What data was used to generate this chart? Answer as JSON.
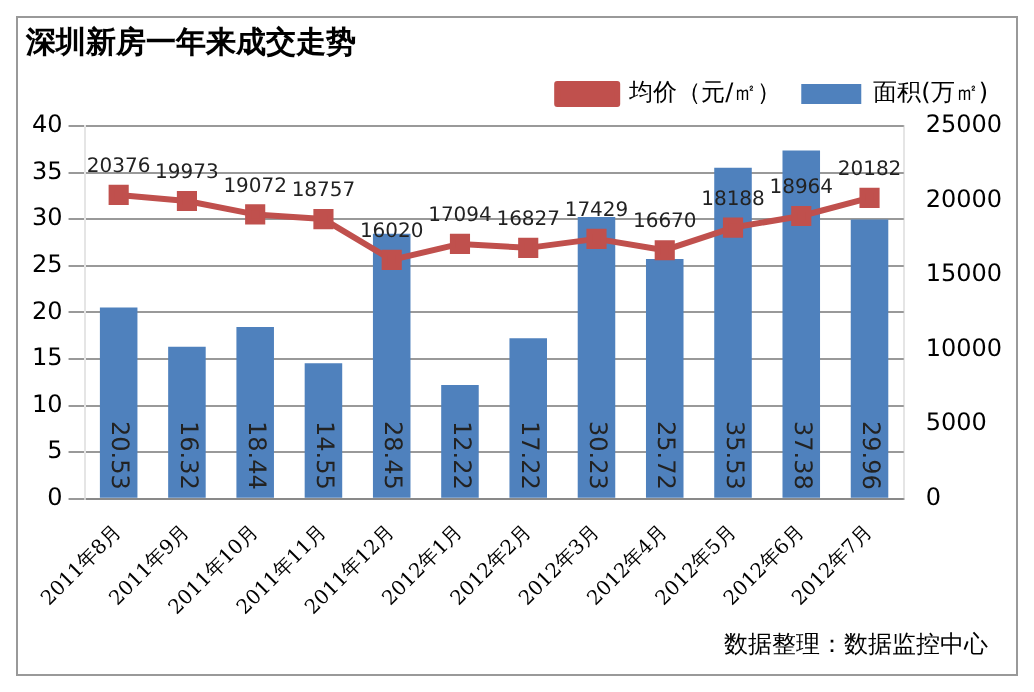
{
  "chart_data": {
    "type": "bar",
    "title": "深圳新房一年来成交走势",
    "categories": [
      "2011年8月",
      "2011年9月",
      "2011年10月",
      "2011年11月",
      "2011年12月",
      "2012年1月",
      "2012年2月",
      "2012年3月",
      "2012年4月",
      "2012年5月",
      "2012年6月",
      "2012年7月"
    ],
    "series": [
      {
        "name": "面积(万㎡)",
        "color": "#4f81bd",
        "values": [
          20.53,
          16.32,
          18.44,
          14.55,
          28.45,
          12.22,
          17.22,
          30.23,
          25.72,
          35.53,
          37.38,
          29.96
        ]
      },
      {
        "name": "均价（元/㎡）",
        "type": "line",
        "axis": "y2",
        "color": "#c0504d",
        "values": [
          20376,
          19973,
          19072,
          18757,
          16020,
          17094,
          16827,
          17429,
          16670,
          18188,
          18964,
          20182
        ]
      }
    ],
    "ylim": [
      0,
      40
    ],
    "yticks": [
      0,
      5,
      10,
      15,
      20,
      25,
      30,
      35,
      40
    ],
    "y2lim": [
      0,
      25000
    ],
    "y2ticks": [
      0,
      5000,
      10000,
      15000,
      20000,
      25000
    ],
    "grid": "y",
    "legend": "top right",
    "marker": "square",
    "data_labels": true,
    "annotations": [
      "数据整理：数据监控中心"
    ]
  }
}
